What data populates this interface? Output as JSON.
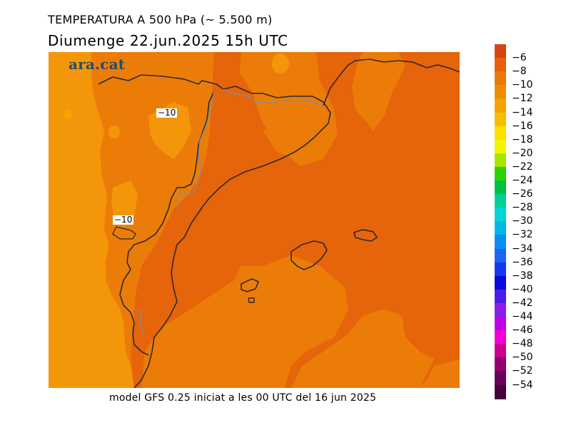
{
  "title": "TEMPERATURA A 500 hPa (~ 5.500 m)",
  "subtitle": "Diumenge  22.jun.2025 15h UTC",
  "footer": "model GFS 0.25 iniciat a les 00 UTC del 16 jun 2025",
  "brand": "ara.cat",
  "contour_labels": [
    "−10",
    "−10"
  ],
  "legend": {
    "labels": [
      "−6",
      "−8",
      "−10",
      "−12",
      "−14",
      "−16",
      "−18",
      "−20",
      "−22",
      "−24",
      "−26",
      "−28",
      "−30",
      "−32",
      "−34",
      "−36",
      "−38",
      "−40",
      "−42",
      "−44",
      "−46",
      "−48",
      "−50",
      "−52",
      "−54"
    ],
    "colors": [
      "#d9450e",
      "#e8600a",
      "#ea7a06",
      "#f08c00",
      "#f6a200",
      "#f8bf00",
      "#fce000",
      "#f4f400",
      "#a8e600",
      "#2ed100",
      "#00c040",
      "#00cf9a",
      "#00d6d6",
      "#00b8e8",
      "#0a8ff0",
      "#1a66f2",
      "#1838f0",
      "#0a0ae0",
      "#4a1ee8",
      "#8a1ee8",
      "#c000e6",
      "#f000d8",
      "#cc0090",
      "#930072",
      "#6a005a",
      "#45003c"
    ]
  },
  "colors": {
    "map_light": "#f4960a",
    "map_mid": "#ec7c08",
    "map_dark": "#e6640a",
    "border": "#2a2a2a",
    "region_border": "#8c8c8c"
  }
}
